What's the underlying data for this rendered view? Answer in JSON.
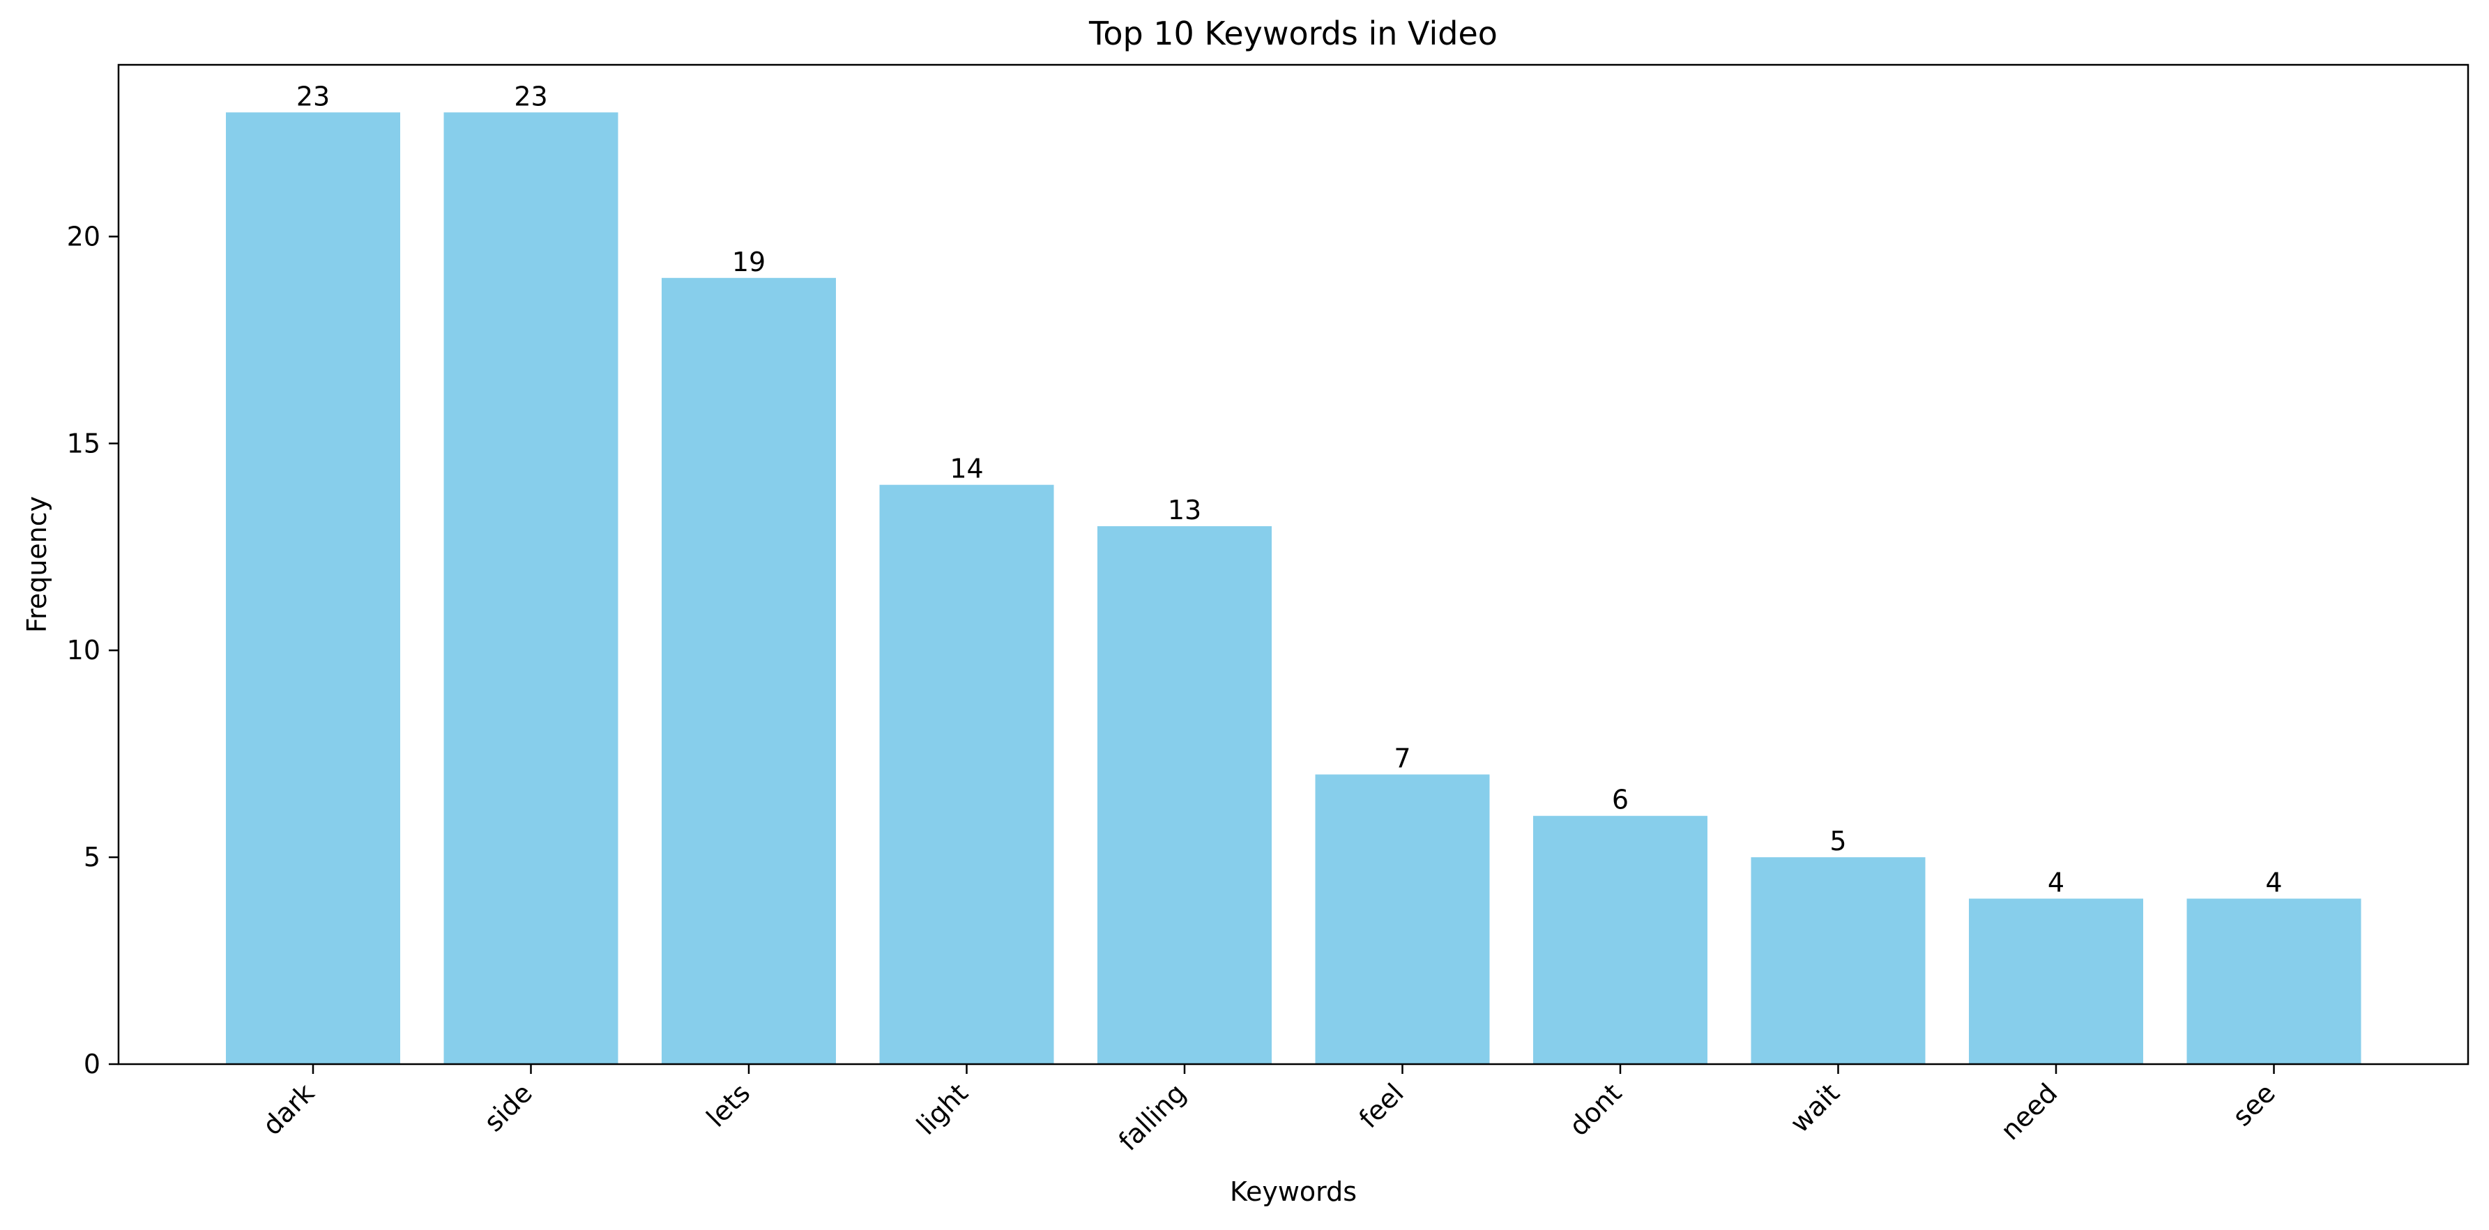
{
  "chart_data": {
    "type": "bar",
    "title": "Top 10 Keywords in Video",
    "xlabel": "Keywords",
    "ylabel": "Frequency",
    "categories": [
      "dark",
      "side",
      "lets",
      "light",
      "falling",
      "feel",
      "dont",
      "wait",
      "need",
      "see"
    ],
    "values": [
      23,
      23,
      19,
      14,
      13,
      7,
      6,
      5,
      4,
      4
    ],
    "ylim": [
      0,
      24.15
    ],
    "yticks": [
      0,
      5,
      10,
      15,
      20
    ],
    "grid": false,
    "bar_color": "#87ceeb",
    "data_labels": true,
    "xtick_rotation_deg": 45
  }
}
